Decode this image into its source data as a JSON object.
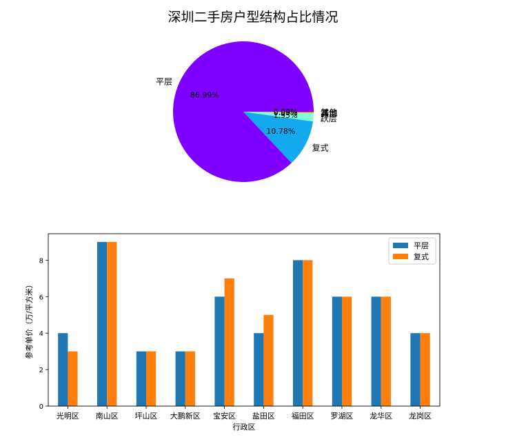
{
  "chart_data": [
    {
      "type": "pie",
      "title": "深圳二手房户型结构占比情况",
      "slices": [
        {
          "label": "平层",
          "value": 86.99,
          "pct_label": "86.99%",
          "color": "#8000ff"
        },
        {
          "label": "复式",
          "value": 10.78,
          "pct_label": "10.78%",
          "color": "#12a9ef"
        },
        {
          "label": "跃层",
          "value": 1.95,
          "pct_label": "1.95%",
          "color": "#80ffd4"
        },
        {
          "label": "错层",
          "value": 0.09,
          "pct_label": "0.09%",
          "color": "#ffb25f"
        },
        {
          "label": "其他",
          "value": 0.09,
          "pct_label": "0.09%",
          "color": "#ff6633"
        },
        {
          "label": "其他",
          "value": 0.09,
          "pct_label": "0.09%",
          "color": "#ff0000"
        }
      ]
    },
    {
      "type": "bar",
      "categories": [
        "光明区",
        "南山区",
        "坪山区",
        "大鹏新区",
        "宝安区",
        "盐田区",
        "福田区",
        "罗湖区",
        "龙华区",
        "龙岗区"
      ],
      "series": [
        {
          "name": "平层",
          "values": [
            4,
            9,
            3,
            3,
            6,
            4,
            8,
            6,
            6,
            4
          ],
          "color": "#1f77b4"
        },
        {
          "name": "复式",
          "values": [
            3,
            9,
            3,
            3,
            7,
            5,
            8,
            6,
            6,
            4
          ],
          "color": "#ff7f0e"
        }
      ],
      "xlabel": "行政区",
      "ylabel": "参考单价（万/平方米）",
      "ylim": [
        0,
        9.45
      ],
      "yticks": [
        0,
        2,
        4,
        6,
        8
      ],
      "legend": "top-right",
      "grid": false
    }
  ]
}
